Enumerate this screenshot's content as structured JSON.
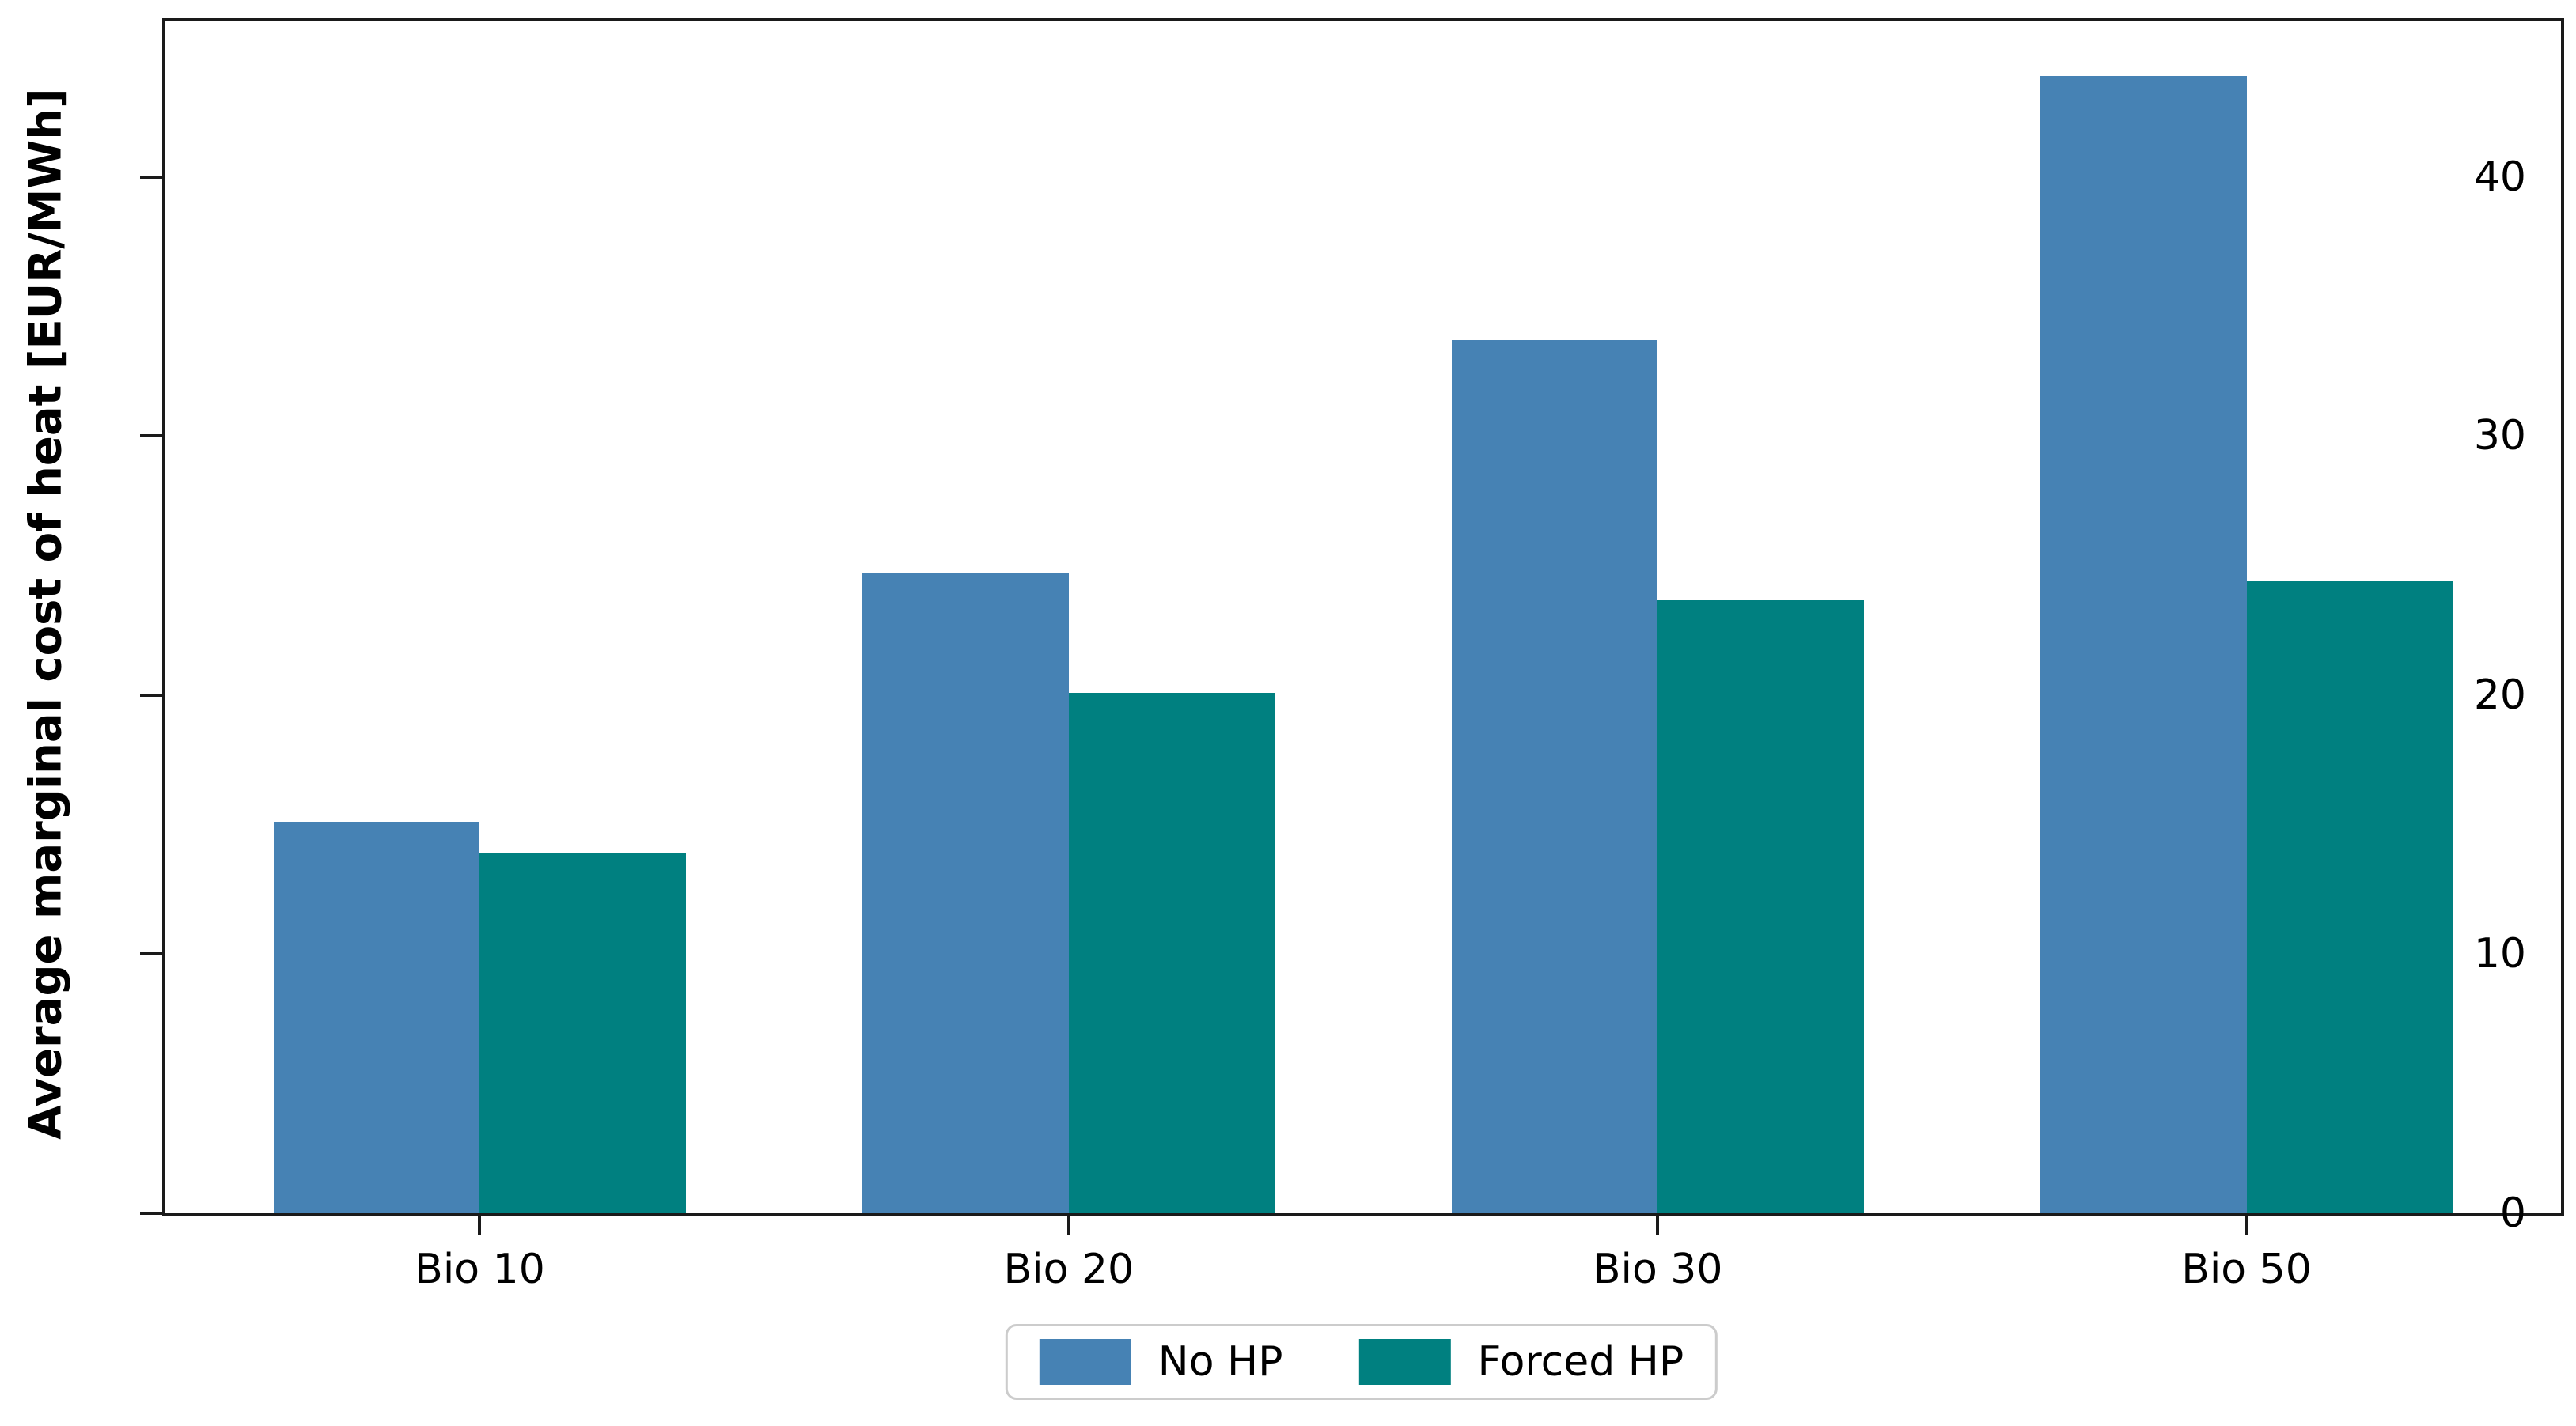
{
  "chart_data": {
    "type": "bar",
    "title": "",
    "categories": [
      "Bio 10",
      "Bio 20",
      "Bio 30",
      "Bio 50"
    ],
    "series": [
      {
        "name": "No HP",
        "color": "#4682B4",
        "values": [
          15.1,
          24.7,
          33.7,
          43.9
        ]
      },
      {
        "name": "Forced HP",
        "color": "#008080",
        "values": [
          13.9,
          20.1,
          23.7,
          24.4
        ]
      }
    ],
    "xlabel": "",
    "ylabel": "Average marginal cost of heat [EUR/MWh]",
    "yticks": [
      0,
      10,
      20,
      30,
      40
    ],
    "ylim": [
      0,
      46
    ],
    "bar_width": 0.35,
    "grid": false,
    "legend_position": "bottom-center"
  }
}
